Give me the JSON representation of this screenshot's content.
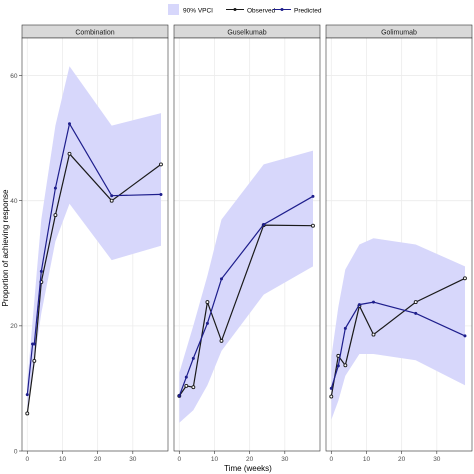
{
  "chart_data": {
    "type": "line",
    "xlabel": "Time (weeks)",
    "ylabel": "Proportion of achieving response",
    "xlim": [
      -1.5,
      40
    ],
    "ylim": [
      0,
      66
    ],
    "xticks": [
      0,
      10,
      20,
      30
    ],
    "yticks": [
      0,
      20,
      40,
      60
    ],
    "grid": true,
    "legend": {
      "position": "top",
      "band_label": "90% VPCI",
      "observed_label": "Observed",
      "predicted_label": "Predicted"
    },
    "colors": {
      "band": "#d7d7fb",
      "observed": "#1a1a1a",
      "predicted": "#1e1e8c",
      "panel_bg": "#ffffff",
      "strip_bg": "#d9d9d9",
      "grid": "#ececec"
    },
    "panels": [
      {
        "title": "Combination",
        "observed": {
          "x": [
            0,
            2,
            4,
            8,
            12,
            24,
            38
          ],
          "y": [
            6,
            14.4,
            27,
            37.7,
            47.5,
            40,
            45.8
          ]
        },
        "predicted": {
          "x": [
            0,
            1.5,
            2,
            4,
            8,
            12,
            24,
            38
          ],
          "y": [
            9,
            17.1,
            17.1,
            28.7,
            42,
            52.3,
            40.8,
            41
          ]
        },
        "band": {
          "x": [
            0,
            4,
            8,
            12,
            24,
            38
          ],
          "lower": [
            6.5,
            22,
            33.5,
            39.5,
            30.5,
            32.8
          ],
          "upper": [
            11,
            37,
            52,
            61.5,
            52,
            54
          ]
        }
      },
      {
        "title": "Guselkumab",
        "observed": {
          "x": [
            0,
            2,
            4,
            8,
            12,
            24,
            38
          ],
          "y": [
            8.8,
            10.4,
            10.2,
            23.8,
            17.6,
            36.1,
            36
          ]
        },
        "predicted": {
          "x": [
            0,
            2,
            4,
            8,
            12,
            24,
            38
          ],
          "y": [
            8.8,
            11.8,
            14.8,
            20.4,
            27.5,
            36.2,
            40.7
          ]
        },
        "band": {
          "x": [
            0,
            4,
            8,
            12,
            24,
            38
          ],
          "lower": [
            4.5,
            6.5,
            10.5,
            16,
            25,
            29.5
          ],
          "upper": [
            12.5,
            20,
            28,
            37,
            45.8,
            48
          ]
        }
      },
      {
        "title": "Golimumab",
        "observed": {
          "x": [
            0,
            2,
            4,
            8,
            12,
            24,
            38
          ],
          "y": [
            8.7,
            15.2,
            13.7,
            23.2,
            18.6,
            23.8,
            27.6
          ]
        },
        "predicted": {
          "x": [
            0,
            2,
            4,
            8,
            12,
            24,
            38
          ],
          "y": [
            10,
            13.6,
            19.6,
            23.4,
            23.8,
            22,
            18.4
          ]
        },
        "band": {
          "x": [
            0,
            2,
            4,
            8,
            12,
            24,
            38
          ],
          "lower": [
            5,
            8,
            12,
            15.5,
            15.5,
            14.5,
            10.5
          ],
          "upper": [
            15,
            23,
            29,
            33,
            34,
            33,
            29.5
          ]
        }
      }
    ]
  }
}
